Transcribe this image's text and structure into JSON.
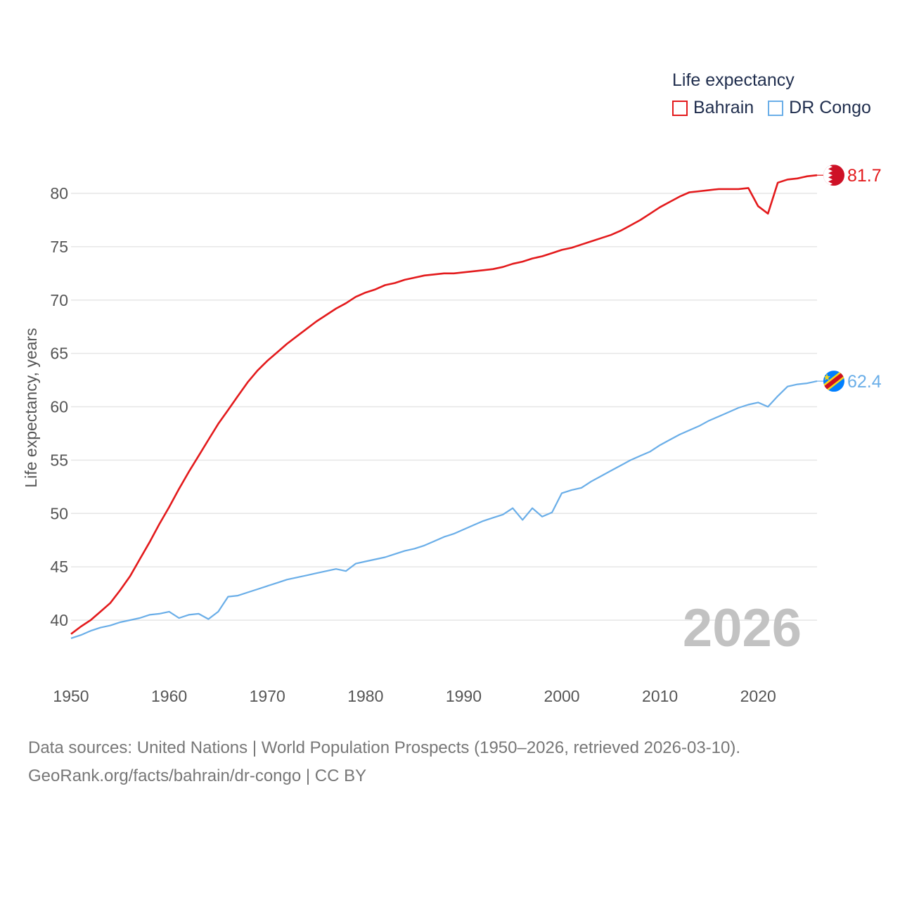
{
  "chart_data": {
    "type": "line",
    "title": "Life expectancy",
    "xlabel": "",
    "ylabel": "Life expectancy, years",
    "year_label": "2026",
    "xlim": [
      1950,
      2026
    ],
    "ylim": [
      37,
      83
    ],
    "x_ticks": [
      1950,
      1960,
      1970,
      1980,
      1990,
      2000,
      2010,
      2020
    ],
    "y_ticks": [
      40,
      45,
      50,
      55,
      60,
      65,
      70,
      75,
      80
    ],
    "x": [
      1950,
      1951,
      1952,
      1953,
      1954,
      1955,
      1956,
      1957,
      1958,
      1959,
      1960,
      1961,
      1962,
      1963,
      1964,
      1965,
      1966,
      1967,
      1968,
      1969,
      1970,
      1971,
      1972,
      1973,
      1974,
      1975,
      1976,
      1977,
      1978,
      1979,
      1980,
      1981,
      1982,
      1983,
      1984,
      1985,
      1986,
      1987,
      1988,
      1989,
      1990,
      1991,
      1992,
      1993,
      1994,
      1995,
      1996,
      1997,
      1998,
      1999,
      2000,
      2001,
      2002,
      2003,
      2004,
      2005,
      2006,
      2007,
      2008,
      2009,
      2010,
      2011,
      2012,
      2013,
      2014,
      2015,
      2016,
      2017,
      2018,
      2019,
      2020,
      2021,
      2022,
      2023,
      2024,
      2025,
      2026
    ],
    "series": [
      {
        "name": "Bahrain",
        "color": "#e31a1c",
        "end_value": "81.7",
        "flag": "bahrain-flag",
        "values": [
          38.7,
          39.4,
          40.0,
          40.8,
          41.6,
          42.8,
          44.1,
          45.7,
          47.3,
          49.0,
          50.6,
          52.3,
          53.9,
          55.4,
          56.9,
          58.4,
          59.7,
          61.0,
          62.3,
          63.4,
          64.3,
          65.1,
          65.9,
          66.6,
          67.3,
          68.0,
          68.6,
          69.2,
          69.7,
          70.3,
          70.7,
          71.0,
          71.4,
          71.6,
          71.9,
          72.1,
          72.3,
          72.4,
          72.5,
          72.5,
          72.6,
          72.7,
          72.8,
          72.9,
          73.1,
          73.4,
          73.6,
          73.9,
          74.1,
          74.4,
          74.7,
          74.9,
          75.2,
          75.5,
          75.8,
          76.1,
          76.5,
          77.0,
          77.5,
          78.1,
          78.7,
          79.2,
          79.7,
          80.1,
          80.2,
          80.3,
          80.4,
          80.4,
          80.4,
          80.5,
          78.8,
          78.1,
          81.0,
          81.3,
          81.4,
          81.6,
          81.7
        ]
      },
      {
        "name": "DR Congo",
        "color": "#6aaee8",
        "end_value": "62.4",
        "flag": "dr-congo-flag",
        "values": [
          38.3,
          38.6,
          39.0,
          39.3,
          39.5,
          39.8,
          40.0,
          40.2,
          40.5,
          40.6,
          40.8,
          40.2,
          40.5,
          40.6,
          40.1,
          40.8,
          42.2,
          42.3,
          42.6,
          42.9,
          43.2,
          43.5,
          43.8,
          44.0,
          44.2,
          44.4,
          44.6,
          44.8,
          44.6,
          45.3,
          45.5,
          45.7,
          45.9,
          46.2,
          46.5,
          46.7,
          47.0,
          47.4,
          47.8,
          48.1,
          48.5,
          48.9,
          49.3,
          49.6,
          49.9,
          50.5,
          49.4,
          50.5,
          49.7,
          50.1,
          51.9,
          52.2,
          52.4,
          53.0,
          53.5,
          54.0,
          54.5,
          55.0,
          55.4,
          55.8,
          56.4,
          56.9,
          57.4,
          57.8,
          58.2,
          58.7,
          59.1,
          59.5,
          59.9,
          60.2,
          60.4,
          60.0,
          61.0,
          61.9,
          62.1,
          62.2,
          62.4
        ]
      }
    ]
  },
  "footer": {
    "line1": "Data sources: United Nations | World Population Prospects (1950–2026, retrieved 2026-03-10).",
    "line2": "GeoRank.org/facts/bahrain/dr-congo | CC BY"
  }
}
